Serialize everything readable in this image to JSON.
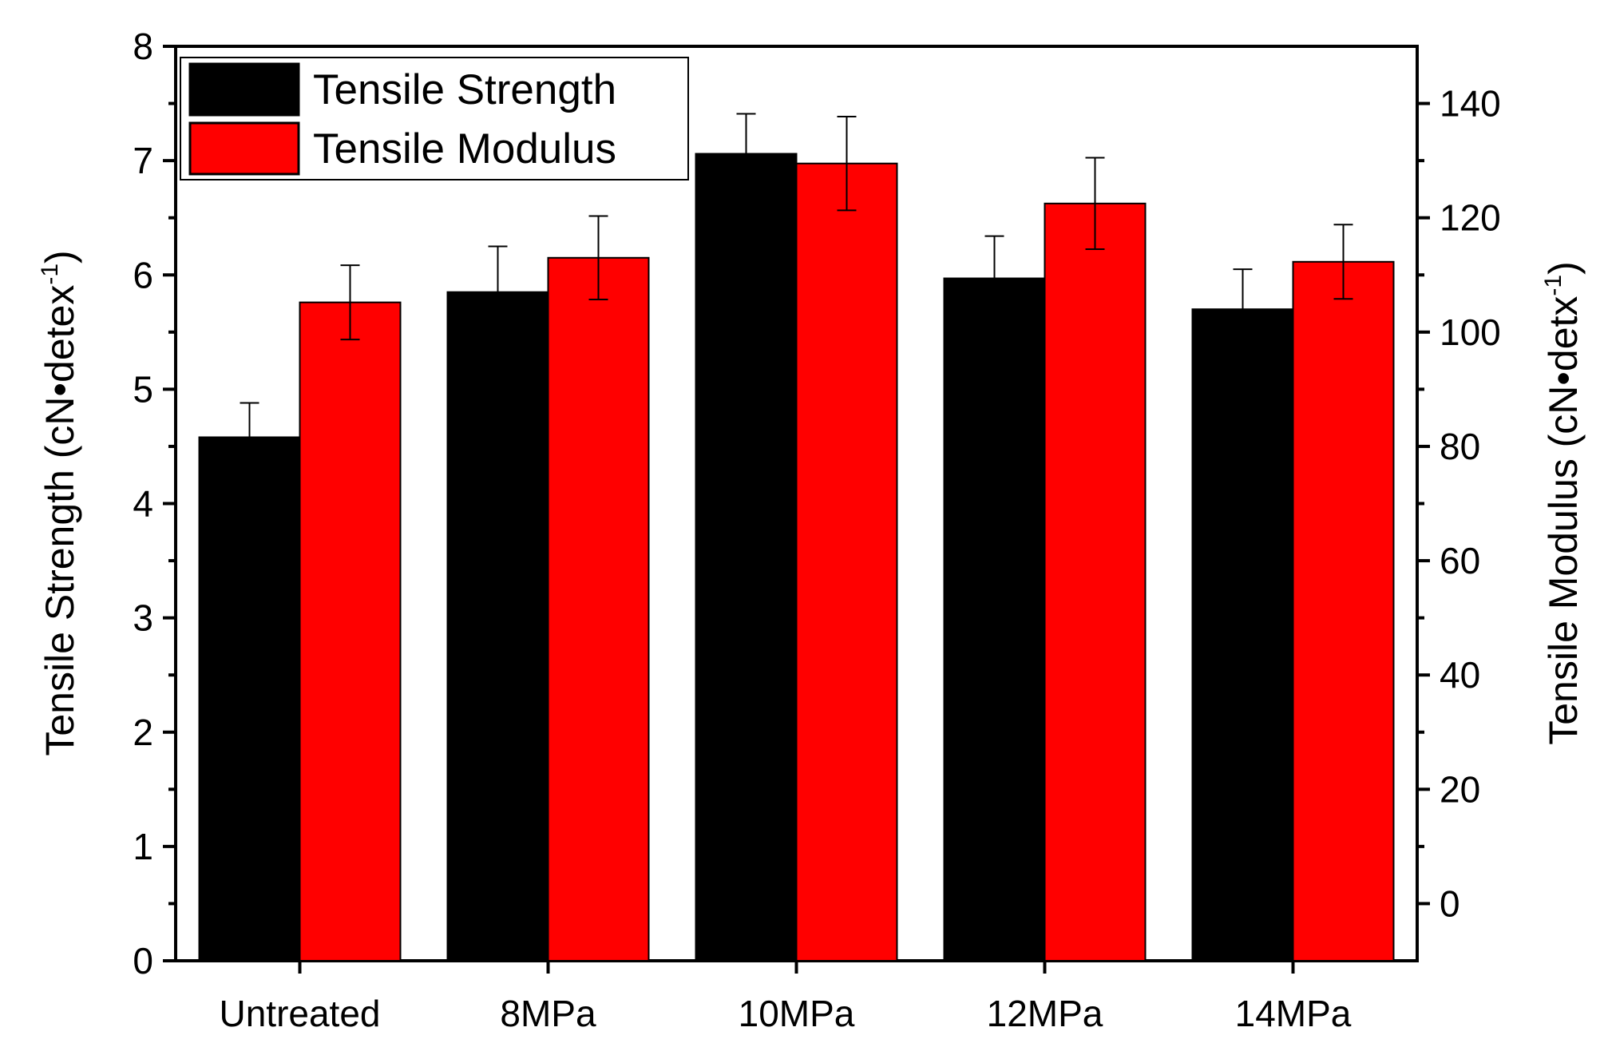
{
  "chart_data": {
    "type": "bar",
    "categories": [
      "Untreated",
      "8MPa",
      "10MPa",
      "12MPa",
      "14MPa"
    ],
    "series": [
      {
        "name": "Tensile Strength",
        "axis": "left",
        "color": "#000000",
        "values": [
          4.58,
          5.85,
          7.06,
          5.97,
          5.7
        ],
        "errors": [
          0.3,
          0.4,
          0.35,
          0.37,
          0.35
        ]
      },
      {
        "name": "Tensile Modulus",
        "axis": "right",
        "color": "#ff0000",
        "values": [
          105.2,
          113.0,
          129.5,
          122.5,
          112.3
        ],
        "errors": [
          6.5,
          7.3,
          8.2,
          8.0,
          6.5
        ]
      }
    ],
    "left_axis": {
      "label_main": "Tensile Strength (cN•detex",
      "label_sup": "-1",
      "label_end": ")",
      "ylim": [
        0,
        8
      ],
      "ticks": [
        0,
        1,
        2,
        3,
        4,
        5,
        6,
        7,
        8
      ]
    },
    "right_axis": {
      "label_main": "Tensile Modulus (cN•detx",
      "label_sup": "-1",
      "label_end": ")",
      "ylim": [
        -10,
        150
      ],
      "ticks": [
        0,
        20,
        40,
        60,
        80,
        100,
        120,
        140
      ]
    },
    "legend": {
      "position": "top-left",
      "entries": [
        "Tensile Strength",
        "Tensile Modulus"
      ]
    }
  }
}
